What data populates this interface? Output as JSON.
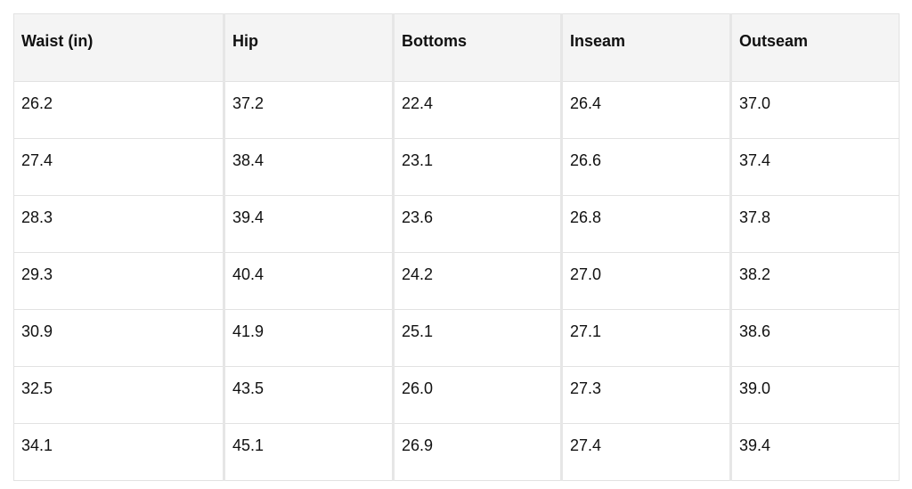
{
  "table": {
    "header": [
      "Waist (in)",
      "Hip",
      "Bottoms",
      "Inseam",
      "Outseam"
    ],
    "rows": [
      [
        "26.2",
        "37.2",
        "22.4",
        "26.4",
        "37.0"
      ],
      [
        "27.4",
        "38.4",
        "23.1",
        "26.6",
        "37.4"
      ],
      [
        "28.3",
        "39.4",
        "23.6",
        "26.8",
        "37.8"
      ],
      [
        "29.3",
        "40.4",
        "24.2",
        "27.0",
        "38.2"
      ],
      [
        "30.9",
        "41.9",
        "25.1",
        "27.1",
        "38.6"
      ],
      [
        "32.5",
        "43.5",
        "26.0",
        "27.3",
        "39.0"
      ],
      [
        "34.1",
        "45.1",
        "26.9",
        "27.4",
        "39.4"
      ]
    ]
  }
}
